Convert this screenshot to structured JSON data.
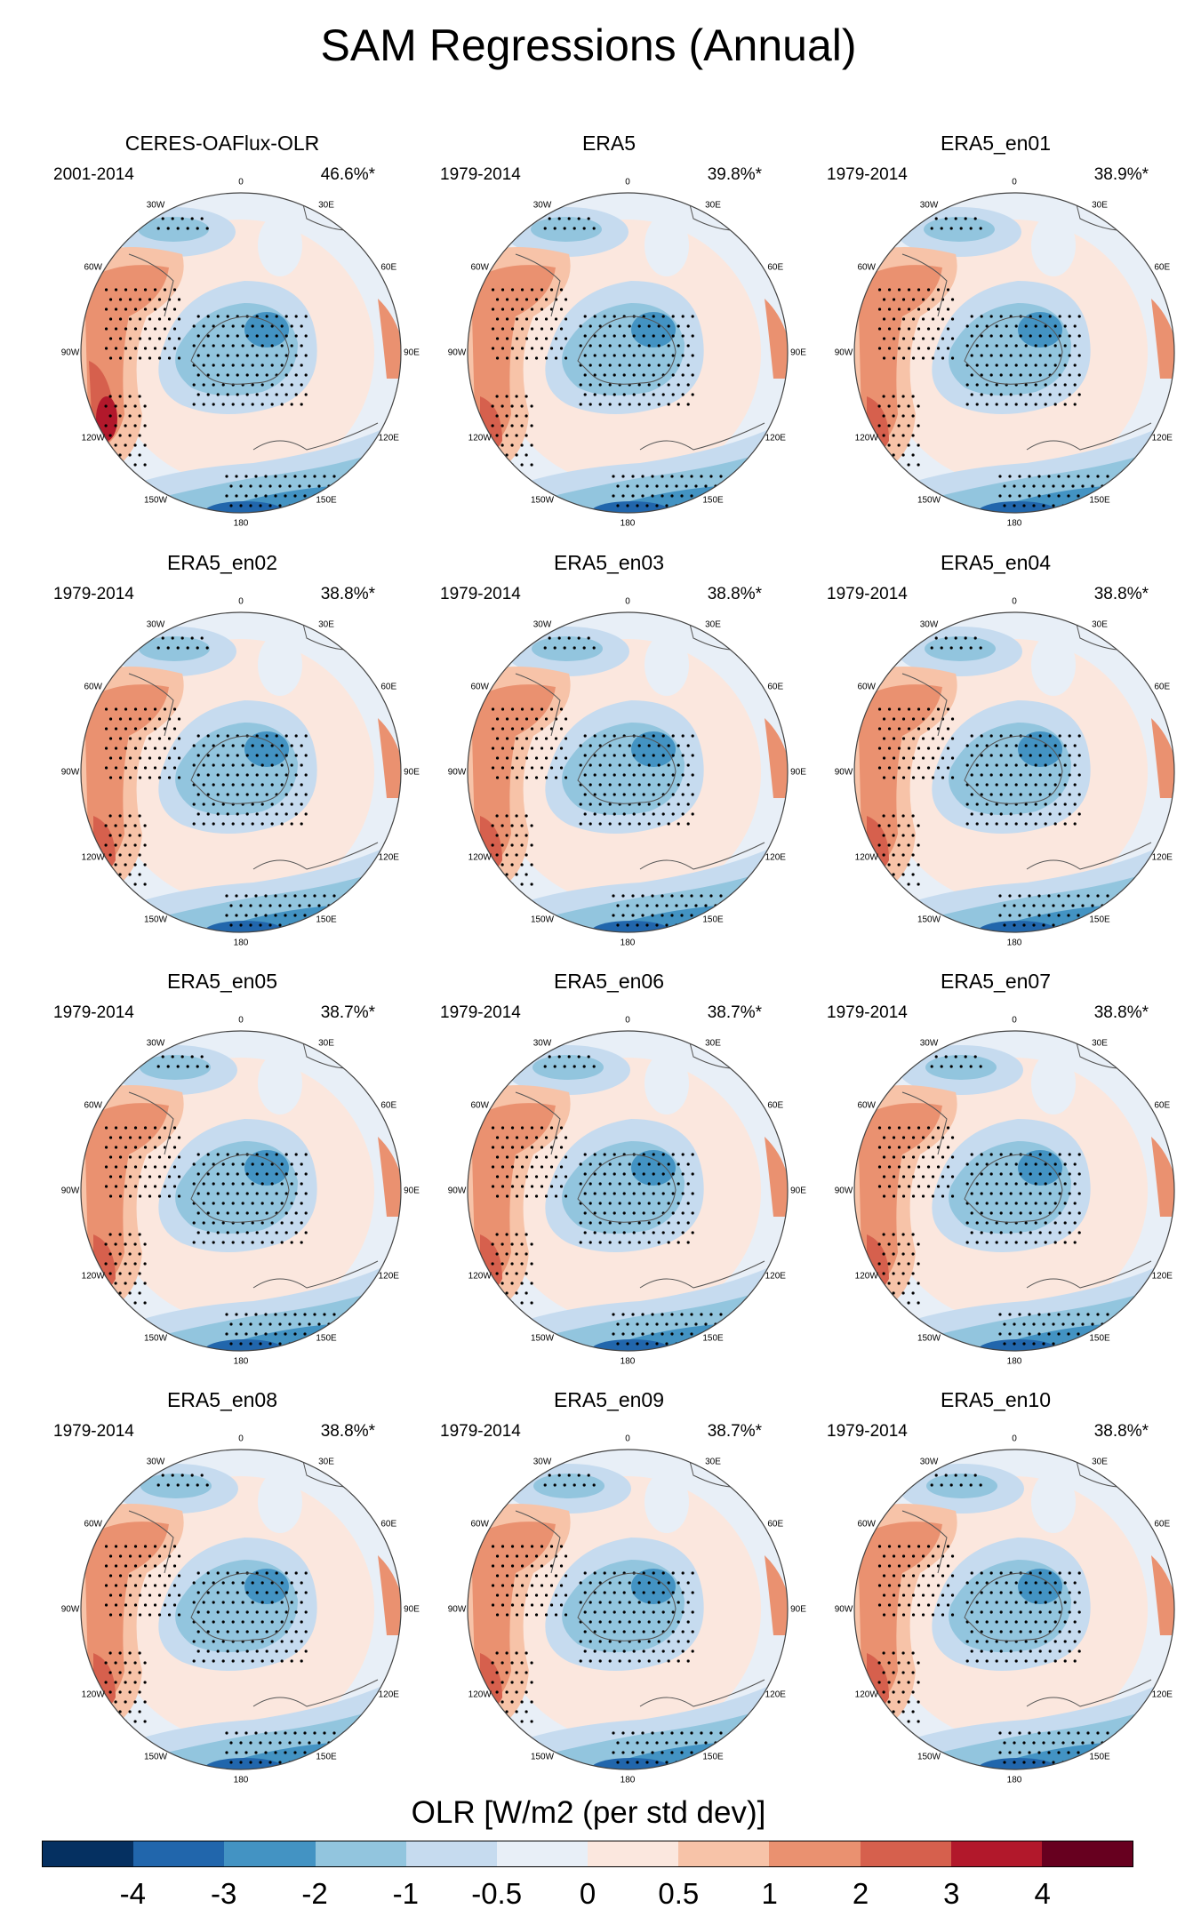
{
  "figure": {
    "title": "SAM Regressions (Annual)"
  },
  "panels": [
    {
      "title": "CERES-OAFlux-OLR",
      "period": "2001-2014",
      "variance": "46.6%*"
    },
    {
      "title": "ERA5",
      "period": "1979-2014",
      "variance": "39.8%*"
    },
    {
      "title": "ERA5_en01",
      "period": "1979-2014",
      "variance": "38.9%*"
    },
    {
      "title": "ERA5_en02",
      "period": "1979-2014",
      "variance": "38.8%*"
    },
    {
      "title": "ERA5_en03",
      "period": "1979-2014",
      "variance": "38.8%*"
    },
    {
      "title": "ERA5_en04",
      "period": "1979-2014",
      "variance": "38.8%*"
    },
    {
      "title": "ERA5_en05",
      "period": "1979-2014",
      "variance": "38.7%*"
    },
    {
      "title": "ERA5_en06",
      "period": "1979-2014",
      "variance": "38.7%*"
    },
    {
      "title": "ERA5_en07",
      "period": "1979-2014",
      "variance": "38.8%*"
    },
    {
      "title": "ERA5_en08",
      "period": "1979-2014",
      "variance": "38.8%*"
    },
    {
      "title": "ERA5_en09",
      "period": "1979-2014",
      "variance": "38.7%*"
    },
    {
      "title": "ERA5_en10",
      "period": "1979-2014",
      "variance": "38.8%*"
    }
  ],
  "longitude_labels": [
    "0",
    "30E",
    "60E",
    "90E",
    "120E",
    "150E",
    "180",
    "150W",
    "120W",
    "90W",
    "60W",
    "30W"
  ],
  "colorbar": {
    "title": "OLR [W/m2 (per std dev)]",
    "ticks": [
      "-4",
      "-3",
      "-2",
      "-1",
      "-0.5",
      "0",
      "0.5",
      "1",
      "2",
      "3",
      "4"
    ],
    "colors": [
      "#053061",
      "#2166ac",
      "#4393c3",
      "#92c5de",
      "#c6dbef",
      "#e8eff7",
      "#fbe7de",
      "#f7c3a8",
      "#ea9170",
      "#d6604d",
      "#b2182b",
      "#67001f"
    ]
  }
}
